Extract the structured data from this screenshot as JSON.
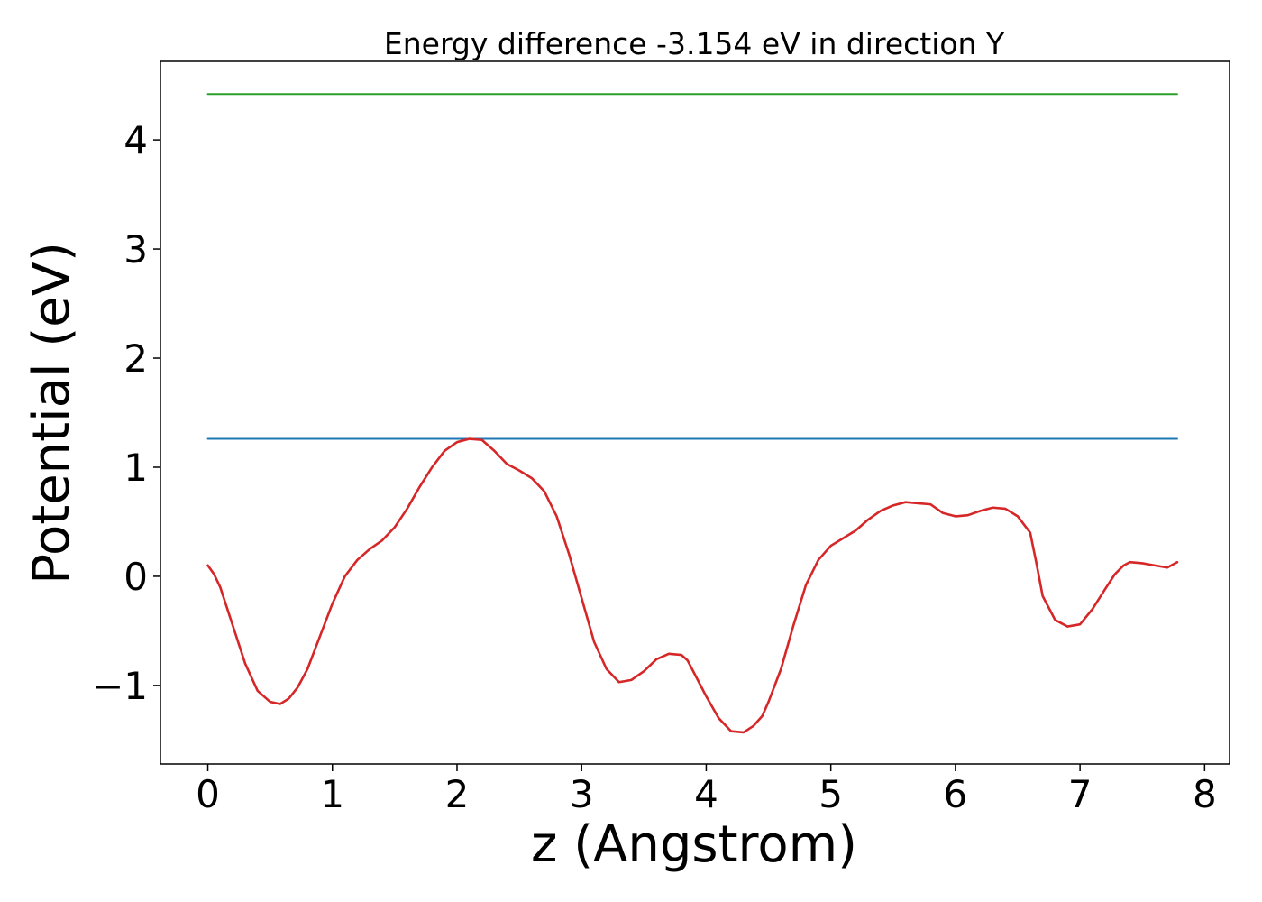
{
  "chart_data": {
    "type": "line",
    "title": "Energy difference -3.154 eV in direction Y",
    "xlabel": "z (Angstrom)",
    "ylabel": "Potential (eV)",
    "xlim": [
      -0.38,
      8.2
    ],
    "ylim": [
      -1.72,
      4.72
    ],
    "xticks": [
      {
        "value": 0,
        "label": "0"
      },
      {
        "value": 1,
        "label": "1"
      },
      {
        "value": 2,
        "label": "2"
      },
      {
        "value": 3,
        "label": "3"
      },
      {
        "value": 4,
        "label": "4"
      },
      {
        "value": 5,
        "label": "5"
      },
      {
        "value": 6,
        "label": "6"
      },
      {
        "value": 7,
        "label": "7"
      },
      {
        "value": 8,
        "label": "8"
      }
    ],
    "yticks": [
      {
        "value": -1,
        "label": "−1"
      },
      {
        "value": 0,
        "label": "0"
      },
      {
        "value": 1,
        "label": "1"
      },
      {
        "value": 2,
        "label": "2"
      },
      {
        "value": 3,
        "label": "3"
      },
      {
        "value": 4,
        "label": "4"
      }
    ],
    "grid": false,
    "series": [
      {
        "color": "#2ca02c",
        "style": "flat",
        "x": [
          0.0,
          7.78
        ],
        "y": [
          4.42,
          4.42
        ]
      },
      {
        "color": "#1f77b4",
        "style": "flat",
        "x": [
          0.0,
          7.78
        ],
        "y": [
          1.26,
          1.26
        ]
      },
      {
        "color": "#d62728",
        "style": "curve",
        "x": [
          0.0,
          0.05,
          0.1,
          0.2,
          0.3,
          0.4,
          0.5,
          0.58,
          0.65,
          0.72,
          0.8,
          0.9,
          1.0,
          1.1,
          1.2,
          1.3,
          1.4,
          1.5,
          1.6,
          1.7,
          1.8,
          1.9,
          2.0,
          2.1,
          2.2,
          2.3,
          2.4,
          2.5,
          2.6,
          2.7,
          2.8,
          2.9,
          3.0,
          3.1,
          3.2,
          3.3,
          3.4,
          3.5,
          3.6,
          3.7,
          3.8,
          3.85,
          3.9,
          4.0,
          4.1,
          4.2,
          4.3,
          4.38,
          4.45,
          4.5,
          4.6,
          4.7,
          4.8,
          4.9,
          5.0,
          5.1,
          5.2,
          5.3,
          5.4,
          5.5,
          5.6,
          5.7,
          5.8,
          5.85,
          5.9,
          6.0,
          6.1,
          6.2,
          6.3,
          6.4,
          6.5,
          6.6,
          6.65,
          6.7,
          6.8,
          6.9,
          7.0,
          7.1,
          7.2,
          7.28,
          7.35,
          7.4,
          7.5,
          7.6,
          7.7,
          7.78
        ],
        "y": [
          0.1,
          0.02,
          -0.1,
          -0.45,
          -0.8,
          -1.05,
          -1.15,
          -1.17,
          -1.12,
          -1.02,
          -0.85,
          -0.55,
          -0.25,
          0.0,
          0.15,
          0.25,
          0.33,
          0.45,
          0.62,
          0.82,
          1.0,
          1.15,
          1.23,
          1.26,
          1.25,
          1.15,
          1.03,
          0.97,
          0.9,
          0.78,
          0.55,
          0.2,
          -0.2,
          -0.6,
          -0.85,
          -0.97,
          -0.95,
          -0.87,
          -0.76,
          -0.71,
          -0.72,
          -0.77,
          -0.88,
          -1.1,
          -1.3,
          -1.42,
          -1.43,
          -1.37,
          -1.28,
          -1.15,
          -0.85,
          -0.45,
          -0.08,
          0.15,
          0.28,
          0.35,
          0.42,
          0.52,
          0.6,
          0.65,
          0.68,
          0.67,
          0.66,
          0.62,
          0.58,
          0.55,
          0.56,
          0.6,
          0.63,
          0.62,
          0.55,
          0.4,
          0.12,
          -0.18,
          -0.4,
          -0.46,
          -0.44,
          -0.3,
          -0.12,
          0.02,
          0.1,
          0.13,
          0.12,
          0.1,
          0.08,
          0.13
        ]
      }
    ]
  }
}
